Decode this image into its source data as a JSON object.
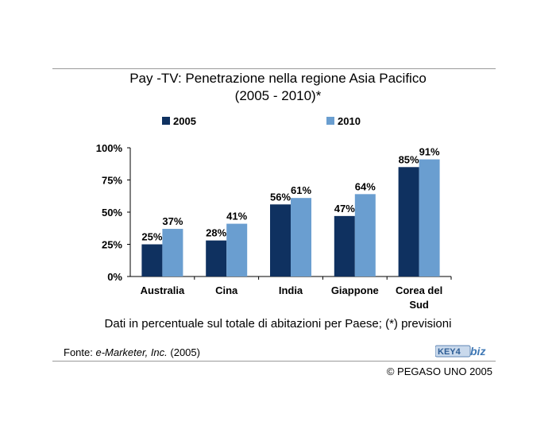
{
  "header": {
    "title_line1": "Pay -TV: Penetrazione nella regione Asia Pacifico",
    "title_line2": "(2005 - 2010)*"
  },
  "chart_data": {
    "type": "bar",
    "title": "Pay -TV: Penetrazione nella regione Asia Pacifico (2005 - 2010)*",
    "categories": [
      [
        "Australia"
      ],
      [
        "Cina"
      ],
      [
        "India"
      ],
      [
        "Giappone"
      ],
      [
        "Corea del",
        "Sud"
      ]
    ],
    "series": [
      {
        "name": "2005",
        "values": [
          25,
          28,
          56,
          47,
          85
        ],
        "labels": [
          "25%",
          "28%",
          "56%",
          "47%",
          "85%"
        ],
        "color": "#0f3160"
      },
      {
        "name": "2010",
        "values": [
          37,
          41,
          61,
          64,
          91
        ],
        "labels": [
          "37%",
          "41%",
          "61%",
          "64%",
          "91%"
        ],
        "color": "#6a9ed0"
      }
    ],
    "ylim": [
      0,
      100
    ],
    "yticks": [
      0,
      25,
      50,
      75,
      100
    ],
    "ytick_labels": [
      "0%",
      "25%",
      "50%",
      "75%",
      "100%"
    ],
    "legend_position": "top",
    "grid": false
  },
  "footer": {
    "note": "Dati in percentuale sul totale di abitazioni per Paese; (*) previsioni",
    "source_prefix": "Fonte: ",
    "source_name": "e-Marketer, Inc.",
    "source_suffix": " (2005)",
    "logo_text": "KEY4biz",
    "copyright": "© PEGASO UNO 2005"
  }
}
